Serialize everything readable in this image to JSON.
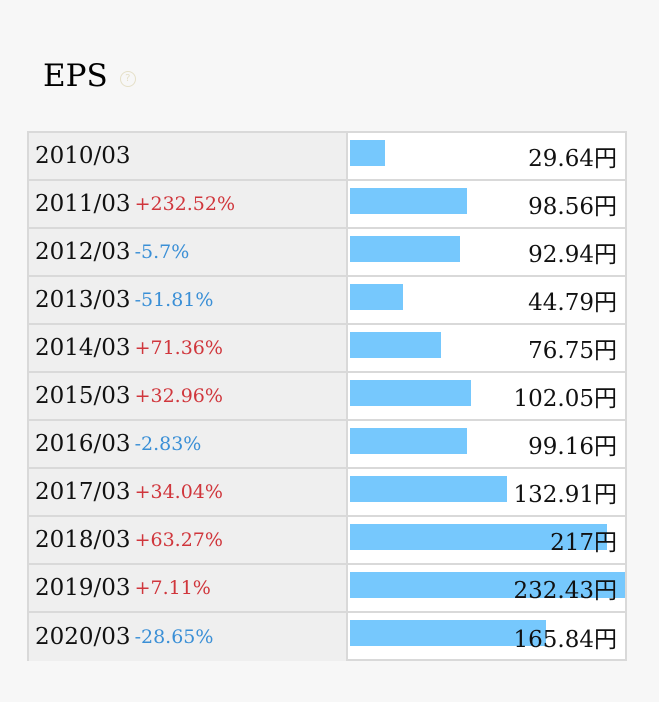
{
  "title": "EPS",
  "help_icon": "question-circle-icon",
  "colors": {
    "bar": "#76c8fd",
    "positive": "#d0363c",
    "negative": "#3a8fd6"
  },
  "chart_data": {
    "type": "bar",
    "orientation": "horizontal",
    "title": "EPS",
    "unit": "円",
    "xlim": [
      0,
      232.43
    ],
    "categories": [
      "2010/03",
      "2011/03",
      "2012/03",
      "2013/03",
      "2014/03",
      "2015/03",
      "2016/03",
      "2017/03",
      "2018/03",
      "2019/03",
      "2020/03"
    ],
    "values": [
      29.64,
      98.56,
      92.94,
      44.79,
      76.75,
      102.05,
      99.16,
      132.91,
      217,
      232.43,
      165.84
    ],
    "value_labels": [
      "29.64円",
      "98.56円",
      "92.94円",
      "44.79円",
      "76.75円",
      "102.05円",
      "99.16円",
      "132.91円",
      "217円",
      "232.43円",
      "165.84円"
    ],
    "changes": [
      "",
      "+232.52%",
      "-5.7%",
      "-51.81%",
      "+71.36%",
      "+32.96%",
      "-2.83%",
      "+34.04%",
      "+63.27%",
      "+7.11%",
      "-28.65%"
    ]
  }
}
